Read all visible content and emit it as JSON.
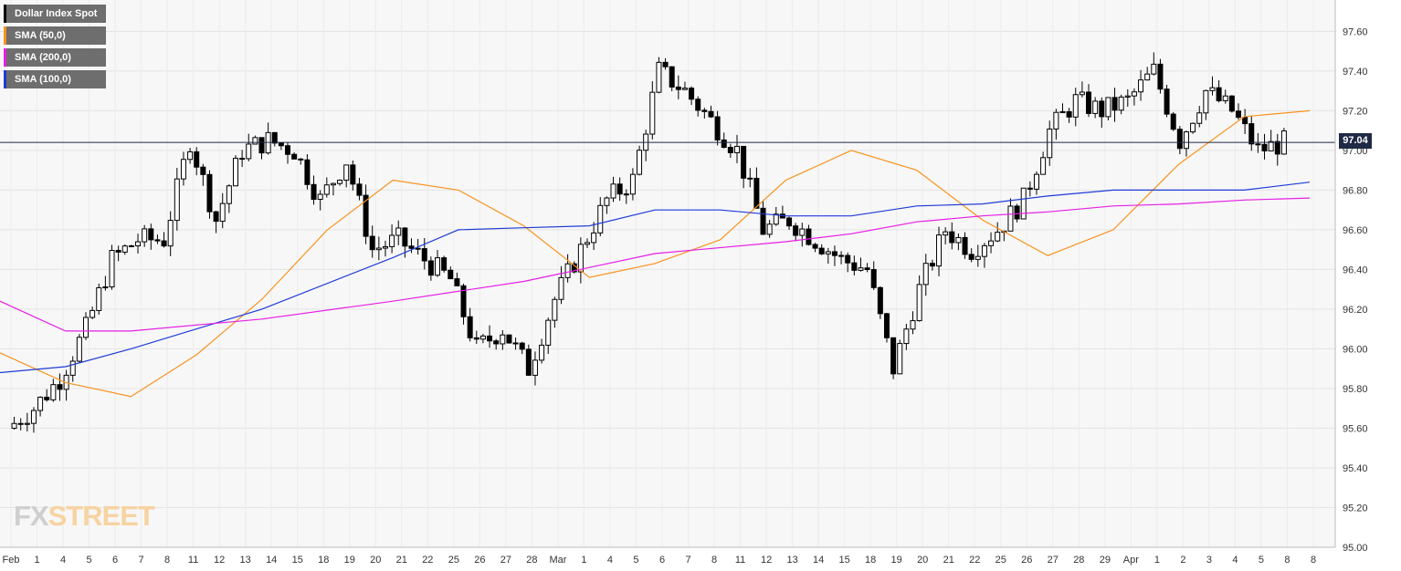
{
  "colors": {
    "candle_up_fill": "#ffffff",
    "candle_down_fill": "#000000",
    "sma50": "#f7931e",
    "sma100": "#1f3bd8",
    "sma200": "#e61ee6",
    "price_line": "#1f2a44",
    "plot_bg": "#f7f7f7",
    "grid": "#e6e6e6"
  },
  "legend": [
    {
      "label": "Dollar Index Spot",
      "color": "#000000"
    },
    {
      "label": "SMA (50,0)",
      "color": "#f7931e"
    },
    {
      "label": "SMA (200,0)",
      "color": "#e61ee6"
    },
    {
      "label": "SMA (100,0)",
      "color": "#1f3bd8"
    }
  ],
  "price_tag": "97.04",
  "logo": {
    "part1": "FX",
    "part2": "STREET"
  },
  "chart_data": {
    "type": "candlestick",
    "title": "Dollar Index Spot",
    "ylim": [
      95.0,
      97.7
    ],
    "y_ticks": [
      "95.00",
      "95.20",
      "95.40",
      "95.60",
      "95.80",
      "96.00",
      "96.20",
      "96.40",
      "96.60",
      "96.80",
      "97.00",
      "97.20",
      "97.40",
      "97.60"
    ],
    "y_tick_values": [
      95.0,
      95.2,
      95.4,
      95.6,
      95.8,
      96.0,
      96.2,
      96.4,
      96.6,
      96.8,
      97.0,
      97.2,
      97.4,
      97.6
    ],
    "x_labels": [
      "Feb",
      "1",
      "4",
      "5",
      "6",
      "7",
      "8",
      "11",
      "12",
      "13",
      "14",
      "15",
      "18",
      "19",
      "20",
      "21",
      "22",
      "25",
      "26",
      "27",
      "28",
      "Mar",
      "1",
      "4",
      "5",
      "6",
      "7",
      "8",
      "11",
      "12",
      "13",
      "14",
      "15",
      "18",
      "19",
      "20",
      "21",
      "22",
      "25",
      "26",
      "27",
      "28",
      "29",
      "Apr",
      "1",
      "2",
      "3",
      "4",
      "5",
      "8",
      "8"
    ],
    "last_price": 97.04,
    "daily_close": [
      95.6,
      95.7,
      95.85,
      96.1,
      96.45,
      96.55,
      96.55,
      97.05,
      96.65,
      97.0,
      97.05,
      97.0,
      96.75,
      96.95,
      96.5,
      96.55,
      96.45,
      96.35,
      96.0,
      96.1,
      95.9,
      96.25,
      96.5,
      96.75,
      96.85,
      97.4,
      97.3,
      97.15,
      97.0,
      96.6,
      96.65,
      96.55,
      96.45,
      96.4,
      95.9,
      96.3,
      96.6,
      96.5,
      96.6,
      96.75,
      97.1,
      97.25,
      97.2,
      97.25,
      97.4,
      97.05,
      97.3,
      97.2,
      97.0,
      97.04
    ],
    "series": [
      {
        "name": "SMA (50,0)",
        "x": [
          0,
          5,
          10,
          15,
          20,
          25,
          30,
          35,
          40,
          45,
          50,
          55,
          60,
          65,
          70,
          75,
          80,
          85,
          90,
          95,
          100
        ],
        "values": [
          95.98,
          95.83,
          95.76,
          95.97,
          96.25,
          96.6,
          96.85,
          96.8,
          96.62,
          96.36,
          96.43,
          96.55,
          96.85,
          97.0,
          96.9,
          96.65,
          96.47,
          96.6,
          96.93,
          97.17,
          97.2
        ]
      },
      {
        "name": "SMA (100,0)",
        "x": [
          0,
          5,
          10,
          20,
          30,
          35,
          40,
          45,
          50,
          55,
          60,
          65,
          70,
          75,
          80,
          85,
          90,
          95,
          100
        ],
        "values": [
          95.88,
          95.91,
          96.0,
          96.2,
          96.46,
          96.6,
          96.61,
          96.62,
          96.7,
          96.7,
          96.67,
          96.67,
          96.72,
          96.73,
          96.77,
          96.8,
          96.8,
          96.8,
          96.84
        ]
      },
      {
        "name": "SMA (200,0)",
        "x": [
          0,
          5,
          10,
          20,
          30,
          40,
          50,
          60,
          65,
          70,
          75,
          80,
          85,
          90,
          95,
          100
        ],
        "values": [
          96.24,
          96.09,
          96.09,
          96.15,
          96.24,
          96.34,
          96.48,
          96.54,
          96.58,
          96.64,
          96.67,
          96.69,
          96.72,
          96.73,
          96.75,
          96.76
        ]
      }
    ]
  }
}
